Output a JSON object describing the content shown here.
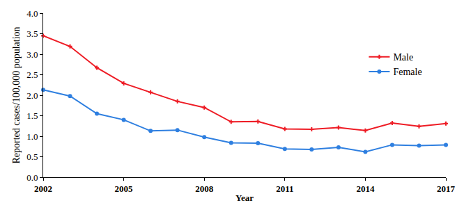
{
  "chart_data": {
    "type": "line",
    "x_label": "Year",
    "y_label": "Reported cases/100,000 population",
    "x": [
      2002,
      2003,
      2004,
      2005,
      2006,
      2007,
      2008,
      2009,
      2010,
      2011,
      2012,
      2013,
      2014,
      2015,
      2016,
      2017
    ],
    "series": [
      {
        "name": "Male",
        "color": "#ee1c25",
        "marker": "cross",
        "values": [
          3.45,
          3.19,
          2.67,
          2.29,
          2.07,
          1.85,
          1.7,
          1.35,
          1.36,
          1.18,
          1.17,
          1.21,
          1.14,
          1.32,
          1.24,
          1.31
        ]
      },
      {
        "name": "Female",
        "color": "#2e7fe0",
        "marker": "circle",
        "values": [
          2.13,
          1.98,
          1.55,
          1.4,
          1.13,
          1.15,
          0.98,
          0.84,
          0.83,
          0.69,
          0.68,
          0.73,
          0.62,
          0.79,
          0.77,
          0.79
        ]
      }
    ],
    "xlim": [
      2002,
      2017
    ],
    "xticks": [
      2002,
      2005,
      2008,
      2011,
      2014,
      2017
    ],
    "ylim": [
      0,
      4
    ],
    "yticks": [
      {
        "value": 0,
        "label": "0.0"
      },
      0.5,
      {
        "value": 1,
        "label": "1.0"
      },
      1.5,
      {
        "value": 2,
        "label": "2.0"
      },
      2.5,
      {
        "value": 3,
        "label": "3.0"
      },
      3.5,
      {
        "value": 4,
        "label": "4.0"
      }
    ],
    "grid": false,
    "legend": "right"
  }
}
